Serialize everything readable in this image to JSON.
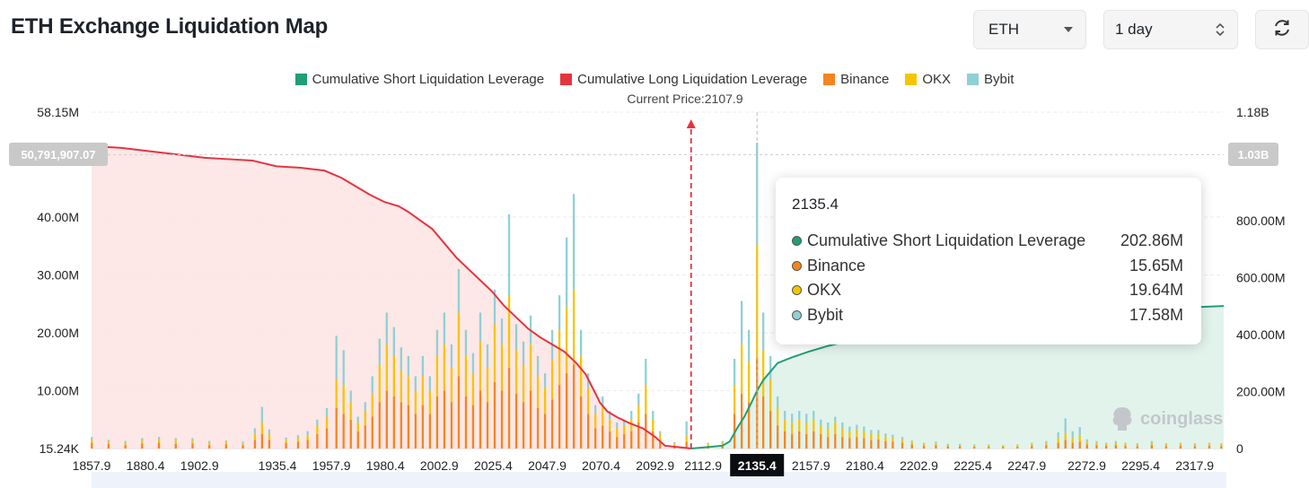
{
  "header": {
    "title": "ETH Exchange Liquidation Map",
    "coin_select": "ETH",
    "range_select": "1 day"
  },
  "legend": [
    {
      "label": "Cumulative Short Liquidation Leverage",
      "color": "#1f9e78"
    },
    {
      "label": "Cumulative Long Liquidation Leverage",
      "color": "#e5343f"
    },
    {
      "label": "Binance",
      "color": "#f5851f"
    },
    {
      "label": "OKX",
      "color": "#f6c500"
    },
    {
      "label": "Bybit",
      "color": "#8fd0d4"
    }
  ],
  "current_price_label": "Current Price:2107.9",
  "tooltip": {
    "title": "2135.4",
    "rows": [
      {
        "label": "Cumulative Short Liquidation Leverage",
        "value": "202.86M",
        "color": "#1f9e78"
      },
      {
        "label": "Binance",
        "value": "15.65M",
        "color": "#f5851f"
      },
      {
        "label": "OKX",
        "value": "19.64M",
        "color": "#f6c500"
      },
      {
        "label": "Bybit",
        "value": "17.58M",
        "color": "#8fd0d4"
      }
    ]
  },
  "watermark": "coinglass",
  "chart_data": {
    "type": "bar",
    "title": "ETH Exchange Liquidation Map",
    "x_ticks": [
      "1857.9",
      "1880.4",
      "1902.9",
      "1935.4",
      "1957.9",
      "1980.4",
      "2002.9",
      "2025.4",
      "2047.9",
      "2070.4",
      "2092.9",
      "2112.9",
      "2135.4",
      "2157.9",
      "2180.4",
      "2202.9",
      "2225.4",
      "2247.9",
      "2272.9",
      "2295.4",
      "2317.9"
    ],
    "x_range": [
      1857.9,
      2330
    ],
    "current_price": 2107.9,
    "highlighted_x": 2135.4,
    "y_left_ticks": [
      "58.15M",
      "40.00M",
      "30.00M",
      "20.00M",
      "10.00M",
      "15.24K"
    ],
    "y_left_range": [
      0,
      58.15
    ],
    "y_right_ticks": [
      "1.18B",
      "800.00M",
      "600.00M",
      "400.00M",
      "200.00M",
      "0"
    ],
    "y_right_range": [
      0,
      1180
    ],
    "y_left_marker": "50,791,907.07",
    "y_right_marker": "1.03B",
    "bar_series": [
      "Binance",
      "OKX",
      "Bybit"
    ],
    "bars": [
      {
        "x": 1858.0,
        "binance": 1.0,
        "okx": 0.5,
        "bybit": 0.5
      },
      {
        "x": 1865.0,
        "binance": 0.8,
        "okx": 0.4,
        "bybit": 0.3
      },
      {
        "x": 1872.0,
        "binance": 0.6,
        "okx": 0.4,
        "bybit": 0.3
      },
      {
        "x": 1879.0,
        "binance": 0.9,
        "okx": 0.5,
        "bybit": 0.4
      },
      {
        "x": 1886.0,
        "binance": 1.0,
        "okx": 0.6,
        "bybit": 0.4
      },
      {
        "x": 1893.0,
        "binance": 0.8,
        "okx": 0.6,
        "bybit": 0.4
      },
      {
        "x": 1900.0,
        "binance": 0.9,
        "okx": 0.5,
        "bybit": 0.4
      },
      {
        "x": 1907.0,
        "binance": 0.6,
        "okx": 0.4,
        "bybit": 0.3
      },
      {
        "x": 1914.0,
        "binance": 0.7,
        "okx": 0.4,
        "bybit": 0.3
      },
      {
        "x": 1921.0,
        "binance": 0.6,
        "okx": 0.3,
        "bybit": 0.3
      },
      {
        "x": 1926.0,
        "binance": 1.5,
        "okx": 1.0,
        "bybit": 1.0
      },
      {
        "x": 1929.0,
        "binance": 2.5,
        "okx": 2.0,
        "bybit": 2.7
      },
      {
        "x": 1932.0,
        "binance": 1.5,
        "okx": 1.0,
        "bybit": 0.8
      },
      {
        "x": 1939.0,
        "binance": 1.0,
        "okx": 0.5,
        "bybit": 0.4
      },
      {
        "x": 1944.0,
        "binance": 1.2,
        "okx": 0.6,
        "bybit": 0.5
      },
      {
        "x": 1948.0,
        "binance": 1.5,
        "okx": 0.8,
        "bybit": 0.7
      },
      {
        "x": 1952.0,
        "binance": 2.5,
        "okx": 1.5,
        "bybit": 1.0
      },
      {
        "x": 1956.0,
        "binance": 3.5,
        "okx": 2.0,
        "bybit": 1.5
      },
      {
        "x": 1960.0,
        "binance": 7.0,
        "okx": 5.0,
        "bybit": 7.5
      },
      {
        "x": 1963.0,
        "binance": 6.0,
        "okx": 5.0,
        "bybit": 6.0
      },
      {
        "x": 1966.0,
        "binance": 5.0,
        "okx": 3.0,
        "bybit": 2.0
      },
      {
        "x": 1969.0,
        "binance": 3.0,
        "okx": 1.5,
        "bybit": 1.0
      },
      {
        "x": 1972.0,
        "binance": 4.0,
        "okx": 2.5,
        "bybit": 1.5
      },
      {
        "x": 1975.0,
        "binance": 5.5,
        "okx": 4.0,
        "bybit": 3.0
      },
      {
        "x": 1978.0,
        "binance": 8.0,
        "okx": 6.5,
        "bybit": 4.5
      },
      {
        "x": 1981.0,
        "binance": 10.0,
        "okx": 8.0,
        "bybit": 5.5
      },
      {
        "x": 1984.0,
        "binance": 9.0,
        "okx": 7.0,
        "bybit": 5.0
      },
      {
        "x": 1987.0,
        "binance": 8.0,
        "okx": 5.5,
        "bybit": 4.0
      },
      {
        "x": 1990.0,
        "binance": 7.5,
        "okx": 5.0,
        "bybit": 3.5
      },
      {
        "x": 1993.0,
        "binance": 6.0,
        "okx": 4.0,
        "bybit": 2.5
      },
      {
        "x": 1996.0,
        "binance": 7.5,
        "okx": 5.0,
        "bybit": 3.5
      },
      {
        "x": 1999.0,
        "binance": 6.0,
        "okx": 4.0,
        "bybit": 2.5
      },
      {
        "x": 2002.0,
        "binance": 9.0,
        "okx": 7.0,
        "bybit": 4.5
      },
      {
        "x": 2005.0,
        "binance": 10.0,
        "okx": 8.0,
        "bybit": 5.5
      },
      {
        "x": 2008.0,
        "binance": 8.0,
        "okx": 6.0,
        "bybit": 4.0
      },
      {
        "x": 2011.0,
        "binance": 12.5,
        "okx": 11.0,
        "bybit": 7.5
      },
      {
        "x": 2014.0,
        "binance": 9.0,
        "okx": 7.0,
        "bybit": 4.5
      },
      {
        "x": 2017.0,
        "binance": 7.5,
        "okx": 5.5,
        "bybit": 3.5
      },
      {
        "x": 2020.0,
        "binance": 10.0,
        "okx": 8.5,
        "bybit": 5.0
      },
      {
        "x": 2023.0,
        "binance": 8.0,
        "okx": 6.0,
        "bybit": 4.0
      },
      {
        "x": 2026.0,
        "binance": 11.5,
        "okx": 10.0,
        "bybit": 6.0
      },
      {
        "x": 2029.0,
        "binance": 10.0,
        "okx": 8.0,
        "bybit": 4.5
      },
      {
        "x": 2032.0,
        "binance": 14.0,
        "okx": 12.5,
        "bybit": 14.0
      },
      {
        "x": 2035.0,
        "binance": 9.5,
        "okx": 7.5,
        "bybit": 4.5
      },
      {
        "x": 2038.0,
        "binance": 8.0,
        "okx": 6.5,
        "bybit": 4.0
      },
      {
        "x": 2041.0,
        "binance": 10.0,
        "okx": 8.0,
        "bybit": 5.0
      },
      {
        "x": 2044.0,
        "binance": 7.0,
        "okx": 5.5,
        "bybit": 3.5
      },
      {
        "x": 2047.0,
        "binance": 6.0,
        "okx": 4.5,
        "bybit": 2.5
      },
      {
        "x": 2050.0,
        "binance": 8.5,
        "okx": 7.0,
        "bybit": 5.0
      },
      {
        "x": 2053.0,
        "binance": 11.0,
        "okx": 9.5,
        "bybit": 6.0
      },
      {
        "x": 2056.0,
        "binance": 13.0,
        "okx": 11.5,
        "bybit": 12.0
      },
      {
        "x": 2059.0,
        "binance": 14.5,
        "okx": 13.0,
        "bybit": 16.5
      },
      {
        "x": 2062.0,
        "binance": 9.0,
        "okx": 7.0,
        "bybit": 4.5
      },
      {
        "x": 2065.0,
        "binance": 6.0,
        "okx": 4.5,
        "bybit": 2.5
      },
      {
        "x": 2068.0,
        "binance": 3.5,
        "okx": 2.5,
        "bybit": 1.5
      },
      {
        "x": 2071.0,
        "binance": 4.0,
        "okx": 3.0,
        "bybit": 2.0
      },
      {
        "x": 2074.0,
        "binance": 3.0,
        "okx": 2.0,
        "bybit": 1.5
      },
      {
        "x": 2077.0,
        "binance": 2.0,
        "okx": 1.5,
        "bybit": 1.0
      },
      {
        "x": 2080.0,
        "binance": 2.5,
        "okx": 1.5,
        "bybit": 1.0
      },
      {
        "x": 2083.0,
        "binance": 3.0,
        "okx": 2.0,
        "bybit": 1.5
      },
      {
        "x": 2086.0,
        "binance": 4.5,
        "okx": 3.0,
        "bybit": 2.0
      },
      {
        "x": 2089.0,
        "binance": 6.0,
        "okx": 5.0,
        "bybit": 4.5
      },
      {
        "x": 2092.0,
        "binance": 3.0,
        "okx": 2.0,
        "bybit": 1.5
      },
      {
        "x": 2095.0,
        "binance": 1.5,
        "okx": 1.0,
        "bybit": 0.5
      },
      {
        "x": 2101.0,
        "binance": 0.5,
        "okx": 0.3,
        "bybit": 0.3
      },
      {
        "x": 2106.0,
        "binance": 1.2,
        "okx": 1.0,
        "bybit": 2.5
      },
      {
        "x": 2115.0,
        "binance": 0.5,
        "okx": 0.3,
        "bybit": 0.2
      },
      {
        "x": 2121.0,
        "binance": 0.6,
        "okx": 0.4,
        "bybit": 0.3
      },
      {
        "x": 2126.0,
        "binance": 6.0,
        "okx": 5.0,
        "bybit": 4.5
      },
      {
        "x": 2129.0,
        "binance": 9.5,
        "okx": 8.5,
        "bybit": 7.5
      },
      {
        "x": 2132.0,
        "binance": 8.0,
        "okx": 7.0,
        "bybit": 5.5
      },
      {
        "x": 2135.4,
        "binance": 15.65,
        "okx": 19.64,
        "bybit": 17.58
      },
      {
        "x": 2138.0,
        "binance": 9.0,
        "okx": 8.0,
        "bybit": 6.5
      },
      {
        "x": 2141.0,
        "binance": 6.5,
        "okx": 5.5,
        "bybit": 4.0
      },
      {
        "x": 2144.0,
        "binance": 4.0,
        "okx": 3.0,
        "bybit": 2.0
      },
      {
        "x": 2147.0,
        "binance": 3.0,
        "okx": 2.0,
        "bybit": 1.5
      },
      {
        "x": 2150.0,
        "binance": 2.5,
        "okx": 2.0,
        "bybit": 1.5
      },
      {
        "x": 2153.0,
        "binance": 3.0,
        "okx": 2.0,
        "bybit": 1.5
      },
      {
        "x": 2156.0,
        "binance": 2.5,
        "okx": 2.0,
        "bybit": 1.5
      },
      {
        "x": 2159.0,
        "binance": 3.0,
        "okx": 2.0,
        "bybit": 1.5
      },
      {
        "x": 2162.0,
        "binance": 2.5,
        "okx": 1.5,
        "bybit": 1.0
      },
      {
        "x": 2165.0,
        "binance": 2.0,
        "okx": 1.5,
        "bybit": 1.0
      },
      {
        "x": 2168.0,
        "binance": 2.5,
        "okx": 2.0,
        "bybit": 1.0
      },
      {
        "x": 2171.0,
        "binance": 2.0,
        "okx": 1.5,
        "bybit": 1.0
      },
      {
        "x": 2174.0,
        "binance": 1.8,
        "okx": 1.2,
        "bybit": 0.8
      },
      {
        "x": 2177.0,
        "binance": 2.0,
        "okx": 1.3,
        "bybit": 0.8
      },
      {
        "x": 2180.0,
        "binance": 1.8,
        "okx": 1.2,
        "bybit": 0.8
      },
      {
        "x": 2183.0,
        "binance": 1.5,
        "okx": 1.0,
        "bybit": 0.7
      },
      {
        "x": 2186.0,
        "binance": 1.6,
        "okx": 1.0,
        "bybit": 0.6
      },
      {
        "x": 2189.0,
        "binance": 1.3,
        "okx": 0.8,
        "bybit": 0.5
      },
      {
        "x": 2192.0,
        "binance": 1.2,
        "okx": 0.7,
        "bybit": 0.5
      },
      {
        "x": 2196.0,
        "binance": 1.0,
        "okx": 0.6,
        "bybit": 0.4
      },
      {
        "x": 2200.0,
        "binance": 0.7,
        "okx": 0.4,
        "bybit": 0.3
      },
      {
        "x": 2205.0,
        "binance": 0.5,
        "okx": 0.3,
        "bybit": 0.2
      },
      {
        "x": 2210.0,
        "binance": 0.6,
        "okx": 0.3,
        "bybit": 0.3
      },
      {
        "x": 2215.0,
        "binance": 0.4,
        "okx": 0.2,
        "bybit": 0.2
      },
      {
        "x": 2220.0,
        "binance": 0.4,
        "okx": 0.2,
        "bybit": 0.2
      },
      {
        "x": 2226.0,
        "binance": 0.3,
        "okx": 0.2,
        "bybit": 0.2
      },
      {
        "x": 2232.0,
        "binance": 0.3,
        "okx": 0.2,
        "bybit": 0.2
      },
      {
        "x": 2238.0,
        "binance": 0.3,
        "okx": 0.2,
        "bybit": 0.1
      },
      {
        "x": 2244.0,
        "binance": 0.3,
        "okx": 0.2,
        "bybit": 0.2
      },
      {
        "x": 2250.0,
        "binance": 0.5,
        "okx": 0.3,
        "bybit": 0.2
      },
      {
        "x": 2256.0,
        "binance": 0.6,
        "okx": 0.4,
        "bybit": 0.3
      },
      {
        "x": 2261.0,
        "binance": 1.0,
        "okx": 0.8,
        "bybit": 1.0
      },
      {
        "x": 2264.0,
        "binance": 1.5,
        "okx": 1.2,
        "bybit": 2.5
      },
      {
        "x": 2267.0,
        "binance": 1.0,
        "okx": 0.8,
        "bybit": 1.2
      },
      {
        "x": 2270.0,
        "binance": 1.2,
        "okx": 1.0,
        "bybit": 1.5
      },
      {
        "x": 2273.0,
        "binance": 0.7,
        "okx": 0.5,
        "bybit": 0.4
      },
      {
        "x": 2277.0,
        "binance": 0.6,
        "okx": 0.4,
        "bybit": 0.3
      },
      {
        "x": 2281.0,
        "binance": 0.5,
        "okx": 0.3,
        "bybit": 0.2
      },
      {
        "x": 2285.0,
        "binance": 0.6,
        "okx": 0.4,
        "bybit": 0.3
      },
      {
        "x": 2289.0,
        "binance": 0.5,
        "okx": 0.3,
        "bybit": 0.2
      },
      {
        "x": 2294.0,
        "binance": 0.4,
        "okx": 0.3,
        "bybit": 0.2
      },
      {
        "x": 2300.0,
        "binance": 0.6,
        "okx": 0.4,
        "bybit": 0.3
      },
      {
        "x": 2306.0,
        "binance": 0.4,
        "okx": 0.3,
        "bybit": 0.2
      },
      {
        "x": 2312.0,
        "binance": 0.5,
        "okx": 0.3,
        "bybit": 0.2
      },
      {
        "x": 2318.0,
        "binance": 0.4,
        "okx": 0.3,
        "bybit": 0.2
      },
      {
        "x": 2324.0,
        "binance": 0.5,
        "okx": 0.3,
        "bybit": 0.2
      },
      {
        "x": 2329.0,
        "binance": 0.4,
        "okx": 0.3,
        "bybit": 0.2
      }
    ],
    "long_cumulative": [
      [
        1857.9,
        1060
      ],
      [
        1870,
        1055
      ],
      [
        1885,
        1040
      ],
      [
        1895,
        1030
      ],
      [
        1905,
        1020
      ],
      [
        1915,
        1015
      ],
      [
        1925,
        1010
      ],
      [
        1930,
        1000
      ],
      [
        1935,
        990
      ],
      [
        1945,
        985
      ],
      [
        1955,
        975
      ],
      [
        1962,
        950
      ],
      [
        1968,
        920
      ],
      [
        1974,
        890
      ],
      [
        1980,
        865
      ],
      [
        1986,
        850
      ],
      [
        1990,
        830
      ],
      [
        1995,
        800
      ],
      [
        2000,
        770
      ],
      [
        2005,
        720
      ],
      [
        2010,
        670
      ],
      [
        2015,
        630
      ],
      [
        2020,
        590
      ],
      [
        2025,
        550
      ],
      [
        2030,
        500
      ],
      [
        2035,
        460
      ],
      [
        2040,
        420
      ],
      [
        2045,
        390
      ],
      [
        2050,
        365
      ],
      [
        2055,
        340
      ],
      [
        2060,
        300
      ],
      [
        2064,
        260
      ],
      [
        2067,
        210
      ],
      [
        2070,
        160
      ],
      [
        2073,
        130
      ],
      [
        2077,
        110
      ],
      [
        2082,
        90
      ],
      [
        2088,
        70
      ],
      [
        2093,
        40
      ],
      [
        2097,
        10
      ],
      [
        2107.9,
        0
      ]
    ],
    "short_cumulative": [
      [
        2107.9,
        0
      ],
      [
        2115,
        5
      ],
      [
        2121,
        10
      ],
      [
        2124,
        25
      ],
      [
        2127,
        70
      ],
      [
        2130,
        110
      ],
      [
        2133,
        160
      ],
      [
        2135.4,
        202.86
      ],
      [
        2138,
        240
      ],
      [
        2141,
        270
      ],
      [
        2144,
        300
      ],
      [
        2150,
        320
      ],
      [
        2157,
        340
      ],
      [
        2165,
        360
      ],
      [
        2175,
        380
      ],
      [
        2185,
        400
      ],
      [
        2200,
        420
      ],
      [
        2220,
        440
      ],
      [
        2240,
        455
      ],
      [
        2260,
        468
      ],
      [
        2280,
        480
      ],
      [
        2300,
        490
      ],
      [
        2315,
        495
      ],
      [
        2330,
        500
      ]
    ]
  }
}
